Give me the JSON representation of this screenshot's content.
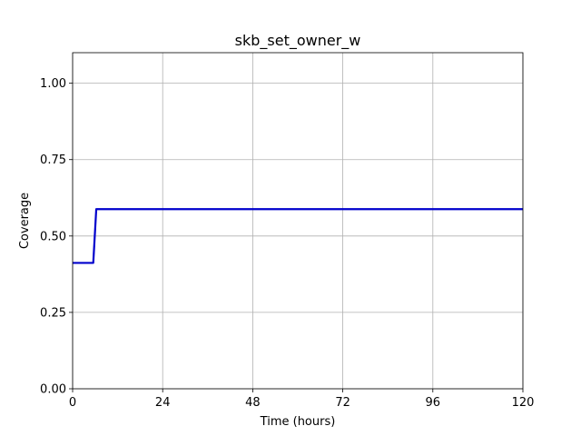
{
  "chart_data": {
    "type": "line",
    "title": "skb_set_owner_w",
    "xlabel": "Time (hours)",
    "ylabel": "Coverage",
    "xlim": [
      0,
      120
    ],
    "ylim": [
      0,
      1.1
    ],
    "xticks": [
      0,
      24,
      48,
      72,
      96,
      120
    ],
    "xtick_labels": [
      "0",
      "24",
      "48",
      "72",
      "96",
      "120"
    ],
    "yticks": [
      0,
      0.25,
      0.5,
      0.75,
      1.0
    ],
    "ytick_labels": [
      "0.00",
      "0.25",
      "0.50",
      "0.75",
      "1.00"
    ],
    "grid": true,
    "series": [
      {
        "color": "#0000cc",
        "x": [
          0,
          5.5,
          6.3,
          120
        ],
        "y": [
          0.412,
          0.412,
          0.588,
          0.588
        ]
      }
    ]
  }
}
